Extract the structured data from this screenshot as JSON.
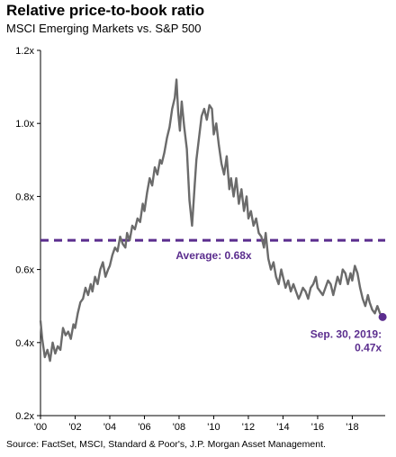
{
  "header": {
    "title": "Relative price-to-book ratio",
    "subtitle": "MSCI Emerging Markets vs. S&P 500"
  },
  "footer": {
    "source": "Source: FactSet, MSCI, Standard & Poor's, J.P. Morgan Asset Management."
  },
  "annotations": {
    "average_label": "Average: 0.68x",
    "latest_date": "Sep. 30, 2019:",
    "latest_value": "0.47x"
  },
  "colors": {
    "series": "#6b6b6b",
    "accent": "#5b2d8e",
    "axis": "#000000"
  },
  "chart_data": {
    "type": "line",
    "title": "Relative price-to-book ratio",
    "subtitle": "MSCI Emerging Markets vs. S&P 500",
    "xlabel": "",
    "ylabel": "",
    "xlim": [
      2000,
      2019.9
    ],
    "ylim": [
      0.2,
      1.2
    ],
    "yticks": [
      0.2,
      0.4,
      0.6,
      0.8,
      1.0,
      1.2
    ],
    "ytick_labels": [
      "0.2x",
      "0.4x",
      "0.6x",
      "0.8x",
      "1.0x",
      "1.2x"
    ],
    "xticks": [
      2000,
      2002,
      2004,
      2006,
      2008,
      2010,
      2012,
      2014,
      2016,
      2018
    ],
    "xtick_labels": [
      "'00",
      "'02",
      "'04",
      "'06",
      "'08",
      "'10",
      "'12",
      "'14",
      "'16",
      "'18"
    ],
    "grid": false,
    "reference_line": {
      "label": "Average: 0.68x",
      "value": 0.68,
      "style": "dashed"
    },
    "series": [
      {
        "x": [
          2000.0,
          2000.1,
          2000.25,
          2000.4,
          2000.55,
          2000.7,
          2000.85,
          2001.0,
          2001.15,
          2001.3,
          2001.45,
          2001.6,
          2001.75,
          2001.9,
          2002.0,
          2002.15,
          2002.3,
          2002.45,
          2002.6,
          2002.75,
          2002.9,
          2003.0,
          2003.15,
          2003.3,
          2003.45,
          2003.6,
          2003.75,
          2003.9,
          2004.0,
          2004.15,
          2004.3,
          2004.45,
          2004.6,
          2004.75,
          2004.9,
          2005.0,
          2005.15,
          2005.3,
          2005.45,
          2005.6,
          2005.75,
          2005.9,
          2006.0,
          2006.15,
          2006.3,
          2006.45,
          2006.6,
          2006.75,
          2006.9,
          2007.0,
          2007.15,
          2007.3,
          2007.45,
          2007.6,
          2007.75,
          2007.85,
          2007.95,
          2008.05,
          2008.15,
          2008.3,
          2008.45,
          2008.6,
          2008.75,
          2008.9,
          2009.0,
          2009.15,
          2009.3,
          2009.45,
          2009.6,
          2009.75,
          2009.9,
          2010.0,
          2010.15,
          2010.3,
          2010.45,
          2010.6,
          2010.75,
          2010.9,
          2011.0,
          2011.15,
          2011.3,
          2011.45,
          2011.6,
          2011.75,
          2011.9,
          2012.0,
          2012.15,
          2012.3,
          2012.45,
          2012.6,
          2012.75,
          2012.9,
          2013.0,
          2013.15,
          2013.3,
          2013.45,
          2013.6,
          2013.75,
          2013.9,
          2014.0,
          2014.15,
          2014.3,
          2014.45,
          2014.6,
          2014.75,
          2014.9,
          2015.0,
          2015.15,
          2015.3,
          2015.45,
          2015.6,
          2015.75,
          2015.9,
          2016.0,
          2016.15,
          2016.3,
          2016.45,
          2016.6,
          2016.75,
          2016.9,
          2017.0,
          2017.15,
          2017.3,
          2017.45,
          2017.6,
          2017.75,
          2017.9,
          2018.0,
          2018.15,
          2018.3,
          2018.45,
          2018.6,
          2018.75,
          2018.9,
          2019.0,
          2019.15,
          2019.3,
          2019.45,
          2019.6,
          2019.75
        ],
        "values": [
          0.46,
          0.41,
          0.36,
          0.38,
          0.35,
          0.4,
          0.37,
          0.39,
          0.38,
          0.44,
          0.42,
          0.43,
          0.41,
          0.45,
          0.44,
          0.48,
          0.51,
          0.52,
          0.55,
          0.53,
          0.56,
          0.54,
          0.58,
          0.56,
          0.6,
          0.62,
          0.58,
          0.6,
          0.61,
          0.64,
          0.66,
          0.65,
          0.69,
          0.67,
          0.66,
          0.7,
          0.68,
          0.72,
          0.71,
          0.74,
          0.73,
          0.78,
          0.76,
          0.81,
          0.85,
          0.83,
          0.88,
          0.86,
          0.9,
          0.89,
          0.92,
          0.96,
          0.99,
          1.04,
          1.07,
          1.12,
          1.03,
          0.98,
          1.06,
          0.99,
          0.93,
          0.79,
          0.72,
          0.83,
          0.9,
          0.96,
          1.02,
          1.04,
          1.01,
          1.05,
          1.04,
          0.97,
          1.0,
          0.94,
          0.89,
          0.86,
          0.91,
          0.82,
          0.85,
          0.8,
          0.85,
          0.78,
          0.82,
          0.76,
          0.8,
          0.74,
          0.76,
          0.72,
          0.74,
          0.7,
          0.69,
          0.66,
          0.7,
          0.63,
          0.6,
          0.62,
          0.58,
          0.56,
          0.6,
          0.58,
          0.55,
          0.57,
          0.54,
          0.56,
          0.54,
          0.52,
          0.53,
          0.55,
          0.54,
          0.52,
          0.55,
          0.56,
          0.58,
          0.55,
          0.54,
          0.53,
          0.55,
          0.57,
          0.56,
          0.53,
          0.55,
          0.58,
          0.56,
          0.6,
          0.59,
          0.56,
          0.59,
          0.57,
          0.61,
          0.59,
          0.55,
          0.52,
          0.5,
          0.53,
          0.51,
          0.49,
          0.48,
          0.5,
          0.48,
          0.47
        ]
      }
    ]
  }
}
